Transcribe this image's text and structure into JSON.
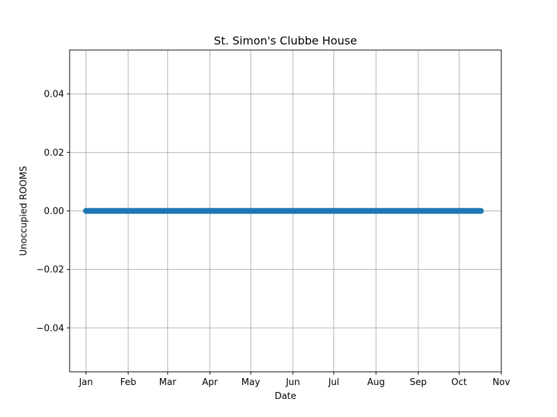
{
  "chart_data": {
    "type": "scatter",
    "title": "St. Simon's Clubbe House",
    "xlabel": "Date",
    "ylabel": "Unoccupied ROOMS",
    "x_range": [
      "2023-12-20",
      "2024-11-01"
    ],
    "ylim": [
      -0.055,
      0.055
    ],
    "x_ticks": [
      {
        "date": "2024-01-01",
        "label": "Jan"
      },
      {
        "date": "2024-02-01",
        "label": "Feb"
      },
      {
        "date": "2024-03-01",
        "label": "Mar"
      },
      {
        "date": "2024-04-01",
        "label": "Apr"
      },
      {
        "date": "2024-05-01",
        "label": "May"
      },
      {
        "date": "2024-06-01",
        "label": "Jun"
      },
      {
        "date": "2024-07-01",
        "label": "Jul"
      },
      {
        "date": "2024-08-01",
        "label": "Aug"
      },
      {
        "date": "2024-09-01",
        "label": "Sep"
      },
      {
        "date": "2024-10-01",
        "label": "Oct"
      },
      {
        "date": "2024-11-01",
        "label": "Nov"
      }
    ],
    "y_ticks": [
      {
        "value": 0.04,
        "label": "0.04"
      },
      {
        "value": 0.02,
        "label": "0.02"
      },
      {
        "value": 0.0,
        "label": "0.00"
      },
      {
        "value": -0.02,
        "label": "−0.02"
      },
      {
        "value": -0.04,
        "label": "−0.04"
      }
    ],
    "grid": true,
    "series": [
      {
        "color": "#1f77b4",
        "x_start": "2024-01-01",
        "x_end": "2024-10-17",
        "frequency": "daily",
        "y_constant": 0.0
      }
    ]
  }
}
